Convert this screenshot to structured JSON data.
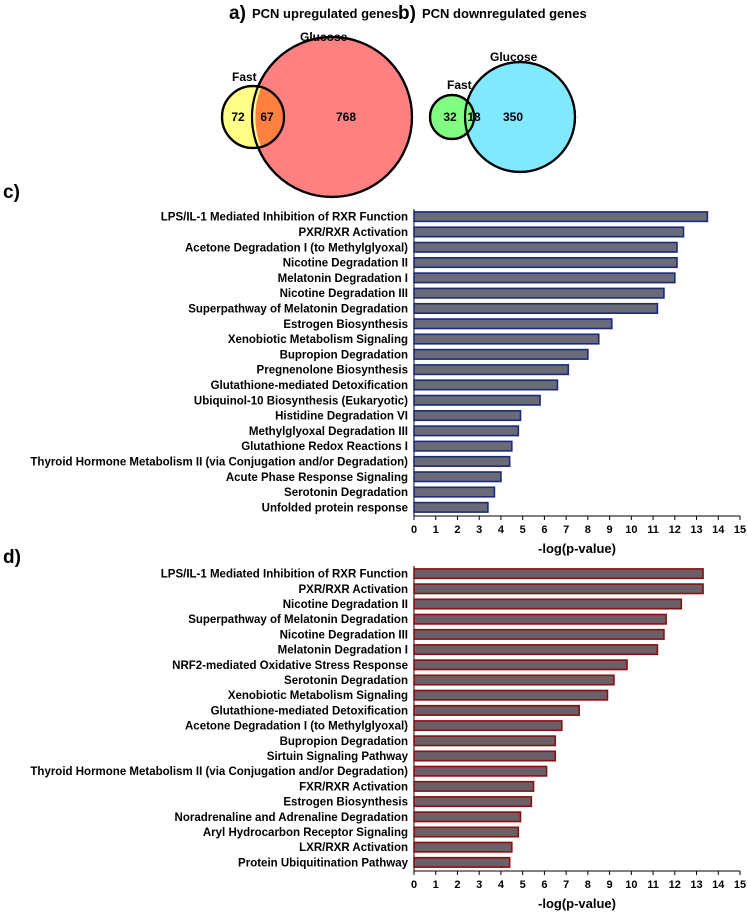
{
  "panels": {
    "a": {
      "label": "a)",
      "title": "PCN upregulated genes"
    },
    "b": {
      "label": "b)",
      "title": "PCN downregulated genes"
    },
    "c": {
      "label": "c)"
    },
    "d": {
      "label": "d)"
    }
  },
  "venns": [
    {
      "set_left": "Fast",
      "set_right": "Glucose",
      "only_left": "72",
      "overlap": "67",
      "only_right": "768",
      "color_left": "#ffff88",
      "color_right": "#ff8080",
      "color_overlap": "#ff8040"
    },
    {
      "set_left": "Fast",
      "set_right": "Glucose",
      "only_left": "32",
      "overlap": "18",
      "only_right": "350",
      "color_left": "#80ff80",
      "color_right": "#80e8ff",
      "color_overlap": "#80ff80"
    }
  ],
  "chart_data": [
    {
      "type": "bar",
      "orientation": "horizontal",
      "xlabel": "-log(p-value)",
      "xlim": [
        0,
        15
      ],
      "xticks": [
        0,
        1,
        2,
        3,
        4,
        5,
        6,
        7,
        8,
        9,
        10,
        11,
        12,
        13,
        14,
        15
      ],
      "bar_color": "#6b6b78",
      "bar_edge_color": "#1c2a7a",
      "categories": [
        "LPS/IL-1 Mediated Inhibition of RXR Function",
        "PXR/RXR Activation",
        "Acetone Degradation I (to Methylglyoxal)",
        "Nicotine Degradation II",
        "Melatonin Degradation I",
        "Nicotine Degradation III",
        "Superpathway of Melatonin Degradation",
        "Estrogen Biosynthesis",
        "Xenobiotic Metabolism Signaling",
        "Bupropion Degradation",
        "Pregnenolone Biosynthesis",
        "Glutathione-mediated Detoxification",
        "Ubiquinol-10 Biosynthesis (Eukaryotic)",
        "Histidine Degradation VI",
        "Methylglyoxal Degradation III",
        "Glutathione Redox Reactions I",
        "Thyroid Hormone Metabolism II (via Conjugation and/or Degradation)",
        "Acute Phase Response Signaling",
        "Serotonin Degradation",
        "Unfolded protein response"
      ],
      "values": [
        13.5,
        12.4,
        12.1,
        12.1,
        12.0,
        11.5,
        11.2,
        9.1,
        8.5,
        8.0,
        7.1,
        6.6,
        5.8,
        4.9,
        4.8,
        4.5,
        4.4,
        4.0,
        3.7,
        3.4
      ]
    },
    {
      "type": "bar",
      "orientation": "horizontal",
      "xlabel": "-log(p-value)",
      "xlim": [
        0,
        15
      ],
      "xticks": [
        0,
        1,
        2,
        3,
        4,
        5,
        6,
        7,
        8,
        9,
        10,
        11,
        12,
        13,
        14,
        15
      ],
      "bar_color": "#6b6068",
      "bar_edge_color": "#8a1010",
      "categories": [
        "LPS/IL-1 Mediated Inhibition of RXR Function",
        "PXR/RXR Activation",
        "Nicotine Degradation II",
        "Superpathway of Melatonin Degradation",
        "Nicotine Degradation III",
        "Melatonin Degradation I",
        "NRF2-mediated Oxidative Stress Response",
        "Serotonin Degradation",
        "Xenobiotic Metabolism Signaling",
        "Glutathione-mediated Detoxification",
        "Acetone Degradation I (to Methylglyoxal)",
        "Bupropion Degradation",
        "Sirtuin Signaling Pathway",
        "Thyroid Hormone Metabolism II (via Conjugation and/or Degradation)",
        "FXR/RXR Activation",
        "Estrogen Biosynthesis",
        "Noradrenaline and Adrenaline Degradation",
        "Aryl Hydrocarbon Receptor Signaling",
        "LXR/RXR Activation",
        "Protein Ubiquitination Pathway"
      ],
      "values": [
        13.3,
        13.3,
        12.3,
        11.6,
        11.5,
        11.2,
        9.8,
        9.2,
        8.9,
        7.6,
        6.8,
        6.5,
        6.5,
        6.1,
        5.5,
        5.4,
        4.9,
        4.8,
        4.5,
        4.4
      ]
    }
  ]
}
